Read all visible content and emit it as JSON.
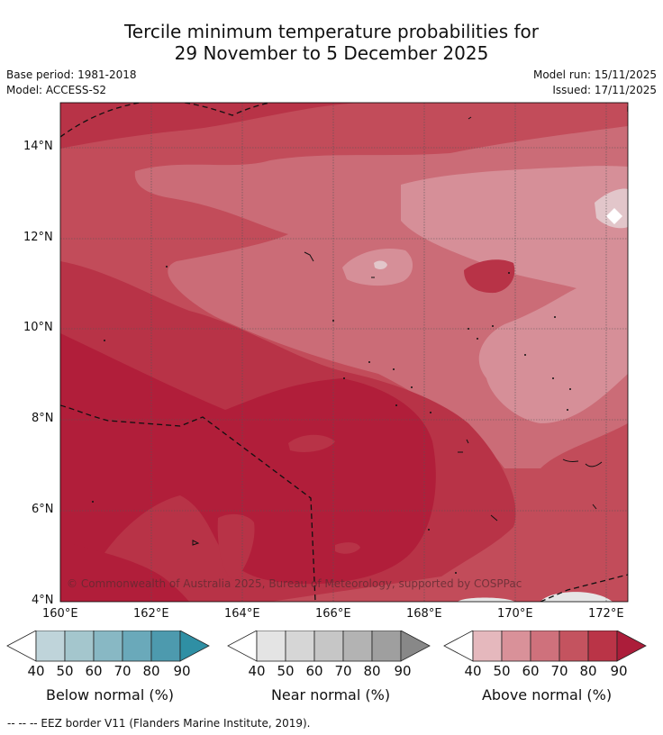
{
  "title": {
    "line1": "Tercile minimum temperature probabilities for",
    "line2": "29 November to 5 December 2025"
  },
  "meta": {
    "base_period": "Base period: 1981-2018",
    "model": "Model: ACCESS-S2",
    "model_run": "Model run: 15/11/2025",
    "issued": "Issued: 17/11/2025"
  },
  "map": {
    "lat_labels": [
      "14°N",
      "12°N",
      "10°N",
      "8°N",
      "6°N",
      "4°N"
    ],
    "lon_labels": [
      "160°E",
      "162°E",
      "164°E",
      "166°E",
      "168°E",
      "170°E",
      "172°E"
    ],
    "lat_values": [
      14,
      12,
      10,
      8,
      6,
      4
    ],
    "lon_values": [
      160,
      162,
      164,
      166,
      168,
      170,
      172
    ],
    "extent": {
      "lon_min": 160,
      "lon_max": 172.5,
      "lat_min": 4,
      "lat_max": 15.1
    },
    "copyright": "© Commonwealth of Australia 2025, Bureau of Meteorology, supported by COSPPac"
  },
  "colorbars": [
    {
      "label": "Below normal (%)",
      "ticks": [
        "40",
        "50",
        "60",
        "70",
        "80",
        "90"
      ],
      "colors": [
        "#bfd4da",
        "#a4c6cd",
        "#88b8c4",
        "#6aa9ba",
        "#4d9aae",
        "#2f8fa4"
      ]
    },
    {
      "label": "Near normal (%)",
      "ticks": [
        "40",
        "50",
        "60",
        "70",
        "80",
        "90"
      ],
      "colors": [
        "#e4e4e4",
        "#d6d6d6",
        "#c6c6c6",
        "#b3b3b3",
        "#9f9f9f",
        "#888888"
      ]
    },
    {
      "label": "Above normal (%)",
      "ticks": [
        "40",
        "50",
        "60",
        "70",
        "80",
        "90"
      ],
      "colors": [
        "#e5b8bd",
        "#d99199",
        "#cf717c",
        "#c4535f",
        "#ba3447",
        "#ac1d3a"
      ]
    }
  ],
  "footnote": "-- -- -- EEZ border V11 (Flanders Marine Institute, 2019).",
  "colors": {
    "above_40": "#e2c6ca",
    "above_50": "#d68f98",
    "above_60": "#cb6c77",
    "above_70": "#c24c5a",
    "above_80": "#b83347",
    "above_90": "#b11e3a"
  }
}
